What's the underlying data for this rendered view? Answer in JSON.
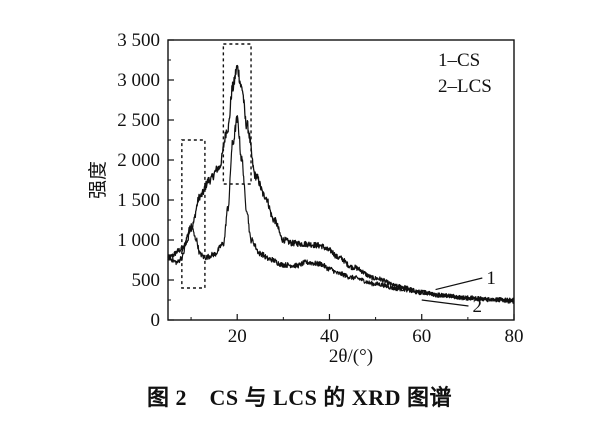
{
  "figure": {
    "caption": "图 2　CS 与 LCS 的 XRD 图谱"
  },
  "chart_data": {
    "type": "line",
    "xlabel": "2θ/(°)",
    "ylabel": "强度",
    "xlim": [
      5,
      80
    ],
    "ylim": [
      0,
      3500
    ],
    "x_ticks": [
      20,
      40,
      60,
      80
    ],
    "y_ticks": [
      0,
      500,
      1000,
      1500,
      2000,
      2500,
      3000,
      3500
    ],
    "y_tick_labels": [
      "0",
      "500",
      "1 000",
      "1 500",
      "2 000",
      "2 500",
      "3 000",
      "3 500"
    ],
    "legend": [
      "1–CS",
      "2–LCS"
    ],
    "legend_position": "top-right",
    "grid": false,
    "series": [
      {
        "name": "1",
        "color": "#111111",
        "x": [
          5,
          8,
          10,
          12,
          14,
          16,
          18,
          19,
          20,
          21,
          22,
          24,
          26,
          28,
          30,
          32,
          35,
          38,
          40,
          42,
          45,
          50,
          55,
          60,
          65,
          70,
          75,
          80
        ],
        "y": [
          780,
          880,
          1150,
          1550,
          1750,
          1900,
          2400,
          2900,
          3150,
          2900,
          2450,
          1800,
          1550,
          1250,
          1000,
          960,
          950,
          930,
          870,
          780,
          660,
          520,
          420,
          350,
          310,
          280,
          260,
          250
        ]
      },
      {
        "name": "2",
        "color": "#111111",
        "x": [
          5,
          7,
          8,
          9,
          10,
          11,
          12,
          13,
          15,
          17,
          18,
          19,
          20,
          21,
          22,
          23,
          25,
          27,
          30,
          33,
          35,
          38,
          40,
          42,
          45,
          50,
          55,
          60,
          65,
          70,
          75,
          80
        ],
        "y": [
          780,
          720,
          780,
          950,
          1180,
          1020,
          820,
          780,
          820,
          950,
          1400,
          2200,
          2500,
          2000,
          1400,
          1000,
          830,
          760,
          690,
          680,
          720,
          700,
          640,
          580,
          530,
          450,
          390,
          340,
          300,
          270,
          250,
          230
        ]
      }
    ],
    "annotations": [
      {
        "type": "box",
        "x": [
          8,
          13
        ],
        "y": [
          400,
          2250
        ],
        "style": "dotted"
      },
      {
        "type": "box",
        "x": [
          17,
          23
        ],
        "y": [
          1700,
          3450
        ],
        "style": "dotted"
      },
      {
        "type": "label",
        "text": "1",
        "at_x": 74,
        "at_y": 450,
        "points_to": [
          63,
          380
        ]
      },
      {
        "type": "label",
        "text": "2",
        "at_x": 71,
        "at_y": 100,
        "points_to": [
          60,
          250
        ]
      }
    ]
  }
}
